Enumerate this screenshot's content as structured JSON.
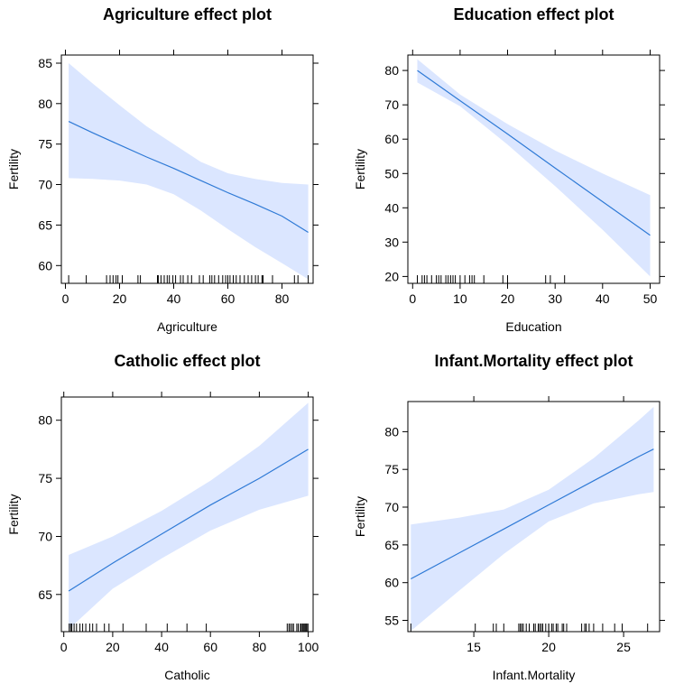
{
  "colors": {
    "band": "#dbe6ff",
    "line": "#2f7ad6",
    "frame": "#000000"
  },
  "chart_data": [
    {
      "type": "line",
      "title": "Agriculture effect plot",
      "xlabel": "Agriculture",
      "ylabel": "Fertility",
      "xlim": [
        -1.5,
        91.5
      ],
      "ylim": [
        57.8,
        86.0
      ],
      "xticks": [
        0,
        20,
        40,
        60,
        80
      ],
      "yticks": [
        60,
        65,
        70,
        75,
        80,
        85
      ],
      "x": [
        1.2,
        10,
        20,
        30,
        40,
        50,
        60,
        70,
        80,
        89.7
      ],
      "fit": [
        77.8,
        76.4,
        74.9,
        73.4,
        72.0,
        70.5,
        69.0,
        67.6,
        66.1,
        64.1
      ],
      "lower": [
        70.8,
        70.7,
        70.5,
        70.0,
        68.8,
        66.8,
        64.5,
        62.3,
        60.3,
        58.3
      ],
      "upper": [
        85.0,
        82.5,
        79.8,
        77.2,
        75.0,
        72.8,
        71.4,
        70.7,
        70.2,
        70.0
      ],
      "rug": [
        1.2,
        7.7,
        15.2,
        16.5,
        17.6,
        18.7,
        19.4,
        21.0,
        26.8,
        27.7,
        34.0,
        34.3,
        35.3,
        36.5,
        37.6,
        38.4,
        39.7,
        40.7,
        42.5,
        43.5,
        45.2,
        46.6,
        49.5,
        50.9,
        53.3,
        54.1,
        55.1,
        56.6,
        58.1,
        59.2,
        60.0,
        60.8,
        62.0,
        63.1,
        64.5,
        66.1,
        67.5,
        68.8,
        70.2,
        71.2,
        72.6,
        73.0,
        76.5,
        84.6,
        85.9,
        89.7
      ]
    },
    {
      "type": "line",
      "title": "Education effect plot",
      "xlabel": "Education",
      "ylabel": "Fertility",
      "xlim": [
        -1.0,
        52.0
      ],
      "ylim": [
        18.0,
        84.5
      ],
      "xticks": [
        0,
        10,
        20,
        30,
        40,
        50
      ],
      "yticks": [
        20,
        30,
        40,
        50,
        60,
        70,
        80
      ],
      "x": [
        1,
        10,
        20,
        30,
        40,
        50
      ],
      "fit": [
        80.0,
        71.2,
        61.5,
        51.6,
        41.8,
        32.0
      ],
      "lower": [
        76.5,
        69.6,
        58.4,
        46.3,
        33.6,
        20.0
      ],
      "upper": [
        83.3,
        73.0,
        64.4,
        56.7,
        50.0,
        43.7
      ],
      "rug": [
        1,
        2,
        2.5,
        3,
        4,
        5,
        5.5,
        6,
        7,
        7.5,
        8,
        8.5,
        9,
        10,
        11,
        12,
        12.5,
        13,
        15,
        19,
        20,
        28,
        29,
        32
      ]
    },
    {
      "type": "line",
      "title": "Catholic effect plot",
      "xlabel": "Catholic",
      "ylabel": "Fertility",
      "xlim": [
        -1.0,
        102.0
      ],
      "ylim": [
        61.8,
        82.0
      ],
      "xticks": [
        0,
        20,
        40,
        60,
        80,
        100
      ],
      "yticks": [
        65,
        70,
        75,
        80
      ],
      "x": [
        2,
        20,
        40,
        60,
        80,
        100
      ],
      "fit": [
        65.3,
        67.7,
        70.2,
        72.7,
        75.0,
        77.5
      ],
      "lower": [
        62.0,
        65.5,
        68.1,
        70.5,
        72.3,
        73.5
      ],
      "upper": [
        68.4,
        70.0,
        72.2,
        74.8,
        77.8,
        81.5
      ],
      "rug": [
        2.2,
        2.8,
        3.3,
        4.2,
        5.2,
        6.6,
        7.7,
        9.0,
        10.6,
        11.8,
        13.4,
        16.6,
        18.5,
        24.2,
        33.7,
        42.3,
        50.4,
        58.3,
        91.4,
        92.1,
        92.7,
        93.4,
        94.0,
        95.3,
        95.9,
        96.8,
        97.2,
        97.7,
        98.2,
        98.6,
        99.0,
        99.4,
        99.9
      ]
    },
    {
      "type": "line",
      "title": "Infant.Mortality effect plot",
      "xlabel": "Infant.Mortality",
      "ylabel": "Fertility",
      "xlim": [
        10.6,
        27.4
      ],
      "ylim": [
        53.5,
        84.0
      ],
      "xticks": [
        15,
        20,
        25
      ],
      "yticks": [
        55,
        60,
        65,
        70,
        75,
        80
      ],
      "x": [
        10.8,
        14,
        17,
        20,
        23,
        26,
        27
      ],
      "fit": [
        60.5,
        63.9,
        67.1,
        70.3,
        73.5,
        76.7,
        77.7
      ],
      "lower": [
        53.6,
        58.9,
        63.8,
        68.1,
        70.5,
        71.7,
        72.0
      ],
      "upper": [
        67.7,
        68.6,
        69.7,
        72.3,
        76.5,
        81.5,
        83.3
      ],
      "rug": [
        10.8,
        15.1,
        16.3,
        16.5,
        17.0,
        18.0,
        18.1,
        18.2,
        18.3,
        18.5,
        18.7,
        19.0,
        19.1,
        19.3,
        19.4,
        19.5,
        19.6,
        19.8,
        20.0,
        20.0,
        20.2,
        20.3,
        20.5,
        20.6,
        20.9,
        21.0,
        21.2,
        22.2,
        22.4,
        22.5,
        22.7,
        23.0,
        23.6,
        24.4,
        24.9,
        26.6
      ]
    }
  ]
}
